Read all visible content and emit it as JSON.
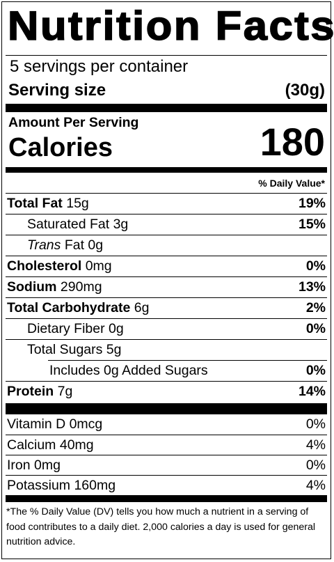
{
  "title": "Nutrition Facts",
  "servings_per_container": "5 servings per container",
  "serving_size": {
    "label": "Serving size",
    "value": "(30g)"
  },
  "amount_per_serving": "Amount Per Serving",
  "calories": {
    "label": "Calories",
    "value": "180"
  },
  "dv_header": "% Daily Value*",
  "nutrients": {
    "total_fat": {
      "name": "Total Fat",
      "amount": "15g",
      "dv": "19%"
    },
    "saturated_fat": {
      "name": "Saturated Fat 3g",
      "dv": "15%"
    },
    "trans_fat": {
      "prefix": "Trans",
      "name": " Fat 0g"
    },
    "cholesterol": {
      "name": "Cholesterol",
      "amount": "0mg",
      "dv": "0%"
    },
    "sodium": {
      "name": "Sodium",
      "amount": "290mg",
      "dv": "13%"
    },
    "total_carbohydrate": {
      "name": "Total Carbohydrate",
      "amount": "6g",
      "dv": "2%"
    },
    "dietary_fiber": {
      "name": "Dietary Fiber 0g",
      "dv": "0%"
    },
    "total_sugars": {
      "name": "Total Sugars 5g"
    },
    "added_sugars": {
      "name": "Includes 0g Added Sugars",
      "dv": "0%"
    },
    "protein": {
      "name": "Protein",
      "amount": "7g",
      "dv": "14%"
    }
  },
  "vitamins": {
    "vitamin_d": {
      "name": "Vitamin D 0mcg",
      "dv": "0%"
    },
    "calcium": {
      "name": "Calcium 40mg",
      "dv": "4%"
    },
    "iron": {
      "name": "Iron 0mg",
      "dv": "0%"
    },
    "potassium": {
      "name": "Potassium 160mg",
      "dv": "4%"
    }
  },
  "footnote": "*The % Daily Value (DV) tells you how much a nutrient in a serving of food contributes to a daily diet. 2,000 calories a day is used for general nutrition advice."
}
